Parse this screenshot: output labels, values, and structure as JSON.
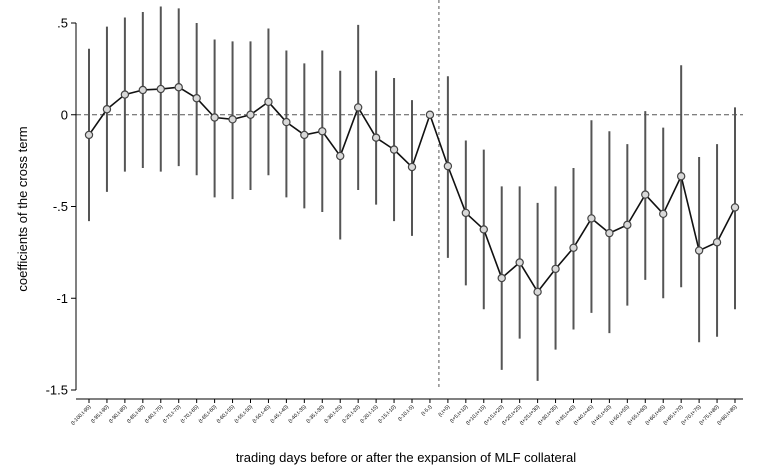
{
  "chart_data": {
    "type": "line",
    "xlabel": "trading days before or after the expansion of MLF collateral",
    "ylabel": "coefficients of the cross term",
    "ylim": [
      -1.5,
      0.5
    ],
    "yticks": [
      0.5,
      0,
      -0.5,
      -1,
      -1.5
    ],
    "ytick_labels": [
      ".5",
      "0",
      "-.5",
      "-1",
      "-1.5"
    ],
    "reference_line_y": 0,
    "event_line_between": [
      "(t-5,t)",
      "(t,t+5)"
    ],
    "grid": false,
    "legend": "none",
    "categories": [
      "(t-100,t-95)",
      "(t-95,t-90)",
      "(t-90,t-85)",
      "(t-85,t-80)",
      "(t-80,t-75)",
      "(t-75,t-70)",
      "(t-70,t-65)",
      "(t-65,t-60)",
      "(t-60,t-55)",
      "(t-55,t-50)",
      "(t-50,t-45)",
      "(t-45,t-40)",
      "(t-40,t-35)",
      "(t-35,t-30)",
      "(t-30,t-25)",
      "(t-25,t-20)",
      "(t-20,t-15)",
      "(t-15,t-10)",
      "(t-10,t-5)",
      "(t-5,t)",
      "(t,t+5)",
      "(t+5,t+10)",
      "(t+10,t+15)",
      "(t+15,t+20)",
      "(t+20,t+25)",
      "(t+25,t+30)",
      "(t+30,t+35)",
      "(t+35,t+40)",
      "(t+40,t+45)",
      "(t+45,t+50)",
      "(t+50,t+55)",
      "(t+55,t+60)",
      "(t+60,t+65)",
      "(t+65,t+70)",
      "(t+70,t+75)",
      "(t+75,t+80)",
      "(t+80,t+85)"
    ],
    "values": [
      -0.11,
      0.03,
      0.11,
      0.135,
      0.14,
      0.15,
      0.09,
      -0.015,
      -0.025,
      0.0,
      0.07,
      -0.04,
      -0.11,
      -0.09,
      -0.225,
      0.04,
      -0.125,
      -0.19,
      -0.285,
      0.0,
      -0.28,
      -0.535,
      -0.625,
      -0.89,
      -0.805,
      -0.965,
      -0.84,
      -0.725,
      -0.565,
      -0.645,
      -0.6,
      -0.435,
      -0.54,
      -0.335,
      -0.74,
      -0.695,
      -0.505
    ],
    "ci_lower": [
      -0.58,
      -0.42,
      -0.31,
      -0.29,
      -0.31,
      -0.28,
      -0.33,
      -0.45,
      -0.46,
      -0.41,
      -0.33,
      -0.45,
      -0.51,
      -0.53,
      -0.68,
      -0.41,
      -0.49,
      -0.58,
      -0.66,
      0.0,
      -0.78,
      -0.93,
      -1.06,
      -1.39,
      -1.22,
      -1.45,
      -1.28,
      -1.17,
      -1.08,
      -1.19,
      -1.04,
      -0.9,
      -1.0,
      -0.94,
      -1.24,
      -1.21,
      -1.06
    ],
    "ci_upper": [
      0.36,
      0.48,
      0.53,
      0.56,
      0.59,
      0.58,
      0.5,
      0.41,
      0.4,
      0.4,
      0.47,
      0.35,
      0.28,
      0.35,
      0.24,
      0.49,
      0.24,
      0.2,
      0.08,
      0.0,
      0.21,
      -0.14,
      -0.19,
      -0.39,
      -0.39,
      -0.48,
      -0.39,
      -0.29,
      -0.03,
      -0.09,
      -0.16,
      0.02,
      -0.07,
      0.27,
      -0.23,
      -0.16,
      0.04
    ],
    "colors": {
      "line": "#111111",
      "marker_edge": "#444444",
      "marker_fill": "#d9d9d9",
      "ci": "#555555",
      "reference": "#555555",
      "axis": "#000000"
    }
  }
}
